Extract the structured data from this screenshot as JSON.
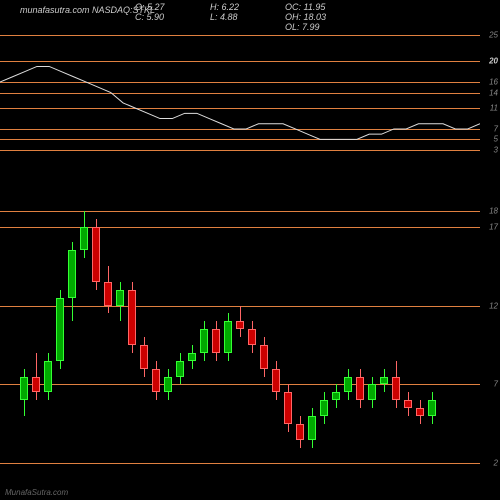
{
  "header": {
    "title_prefix": "munafasutra.com",
    "ticker": "NASDAQ:STKL",
    "ohlc": {
      "O": "5.27",
      "H": "6.22",
      "OC": "11.95",
      "C": "5.90",
      "L": "4.88",
      "OH": "18.03",
      "OL": "7.99"
    }
  },
  "colors": {
    "background": "#000000",
    "grid_line": "#e08040",
    "text": "#cccccc",
    "text_dim": "#888888",
    "up": "#00aa00",
    "up_border": "#33ff33",
    "down": "#cc0000",
    "down_border": "#ff6666",
    "line": "#dddddd"
  },
  "top_panel": {
    "ylim": [
      2,
      26
    ],
    "hlines": [
      3,
      5,
      7,
      11,
      14,
      16,
      20,
      25
    ],
    "highlight_line": 20,
    "line_series": [
      16,
      17,
      18,
      19,
      19,
      18,
      17,
      16,
      15,
      14,
      12,
      11,
      10,
      9,
      9,
      10,
      10,
      9,
      8,
      7,
      7,
      8,
      8,
      8,
      7,
      6,
      5,
      5,
      5,
      5,
      6,
      6,
      7,
      7,
      8,
      8,
      8,
      7,
      7,
      8
    ]
  },
  "bottom_panel": {
    "ylim": [
      0,
      19
    ],
    "hlines": [
      2,
      7,
      12,
      17,
      18
    ],
    "candle_width": 8,
    "spacing": 12,
    "candles": [
      {
        "o": 6,
        "h": 8,
        "l": 5,
        "c": 7.5
      },
      {
        "o": 7.5,
        "h": 9,
        "l": 6,
        "c": 6.5
      },
      {
        "o": 6.5,
        "h": 9,
        "l": 6,
        "c": 8.5
      },
      {
        "o": 8.5,
        "h": 13,
        "l": 8,
        "c": 12.5
      },
      {
        "o": 12.5,
        "h": 16,
        "l": 11,
        "c": 15.5
      },
      {
        "o": 15.5,
        "h": 18,
        "l": 15,
        "c": 17
      },
      {
        "o": 17,
        "h": 17.5,
        "l": 13,
        "c": 13.5
      },
      {
        "o": 13.5,
        "h": 14.5,
        "l": 11.5,
        "c": 12
      },
      {
        "o": 12,
        "h": 13.5,
        "l": 11,
        "c": 13
      },
      {
        "o": 13,
        "h": 13.5,
        "l": 9,
        "c": 9.5
      },
      {
        "o": 9.5,
        "h": 10,
        "l": 7.5,
        "c": 8
      },
      {
        "o": 8,
        "h": 8.5,
        "l": 6,
        "c": 6.5
      },
      {
        "o": 6.5,
        "h": 8,
        "l": 6,
        "c": 7.5
      },
      {
        "o": 7.5,
        "h": 9,
        "l": 7,
        "c": 8.5
      },
      {
        "o": 8.5,
        "h": 9.5,
        "l": 8,
        "c": 9
      },
      {
        "o": 9,
        "h": 11,
        "l": 8.5,
        "c": 10.5
      },
      {
        "o": 10.5,
        "h": 11,
        "l": 8.5,
        "c": 9
      },
      {
        "o": 9,
        "h": 11.5,
        "l": 8.5,
        "c": 11
      },
      {
        "o": 11,
        "h": 12,
        "l": 10,
        "c": 10.5
      },
      {
        "o": 10.5,
        "h": 11,
        "l": 9,
        "c": 9.5
      },
      {
        "o": 9.5,
        "h": 10,
        "l": 7.5,
        "c": 8
      },
      {
        "o": 8,
        "h": 8.5,
        "l": 6,
        "c": 6.5
      },
      {
        "o": 6.5,
        "h": 7,
        "l": 4,
        "c": 4.5
      },
      {
        "o": 4.5,
        "h": 5,
        "l": 3,
        "c": 3.5
      },
      {
        "o": 3.5,
        "h": 5.5,
        "l": 3,
        "c": 5
      },
      {
        "o": 5,
        "h": 6.5,
        "l": 4.5,
        "c": 6
      },
      {
        "o": 6,
        "h": 7,
        "l": 5.5,
        "c": 6.5
      },
      {
        "o": 6.5,
        "h": 8,
        "l": 6,
        "c": 7.5
      },
      {
        "o": 7.5,
        "h": 8,
        "l": 5.5,
        "c": 6
      },
      {
        "o": 6,
        "h": 7.5,
        "l": 5.5,
        "c": 7
      },
      {
        "o": 7,
        "h": 8,
        "l": 6.5,
        "c": 7.5
      },
      {
        "o": 7.5,
        "h": 8.5,
        "l": 5.5,
        "c": 6
      },
      {
        "o": 6,
        "h": 6.5,
        "l": 5,
        "c": 5.5
      },
      {
        "o": 5.5,
        "h": 6,
        "l": 4.5,
        "c": 5
      },
      {
        "o": 5,
        "h": 6.5,
        "l": 4.5,
        "c": 6
      }
    ]
  },
  "watermark": "MunafaSutra.com"
}
